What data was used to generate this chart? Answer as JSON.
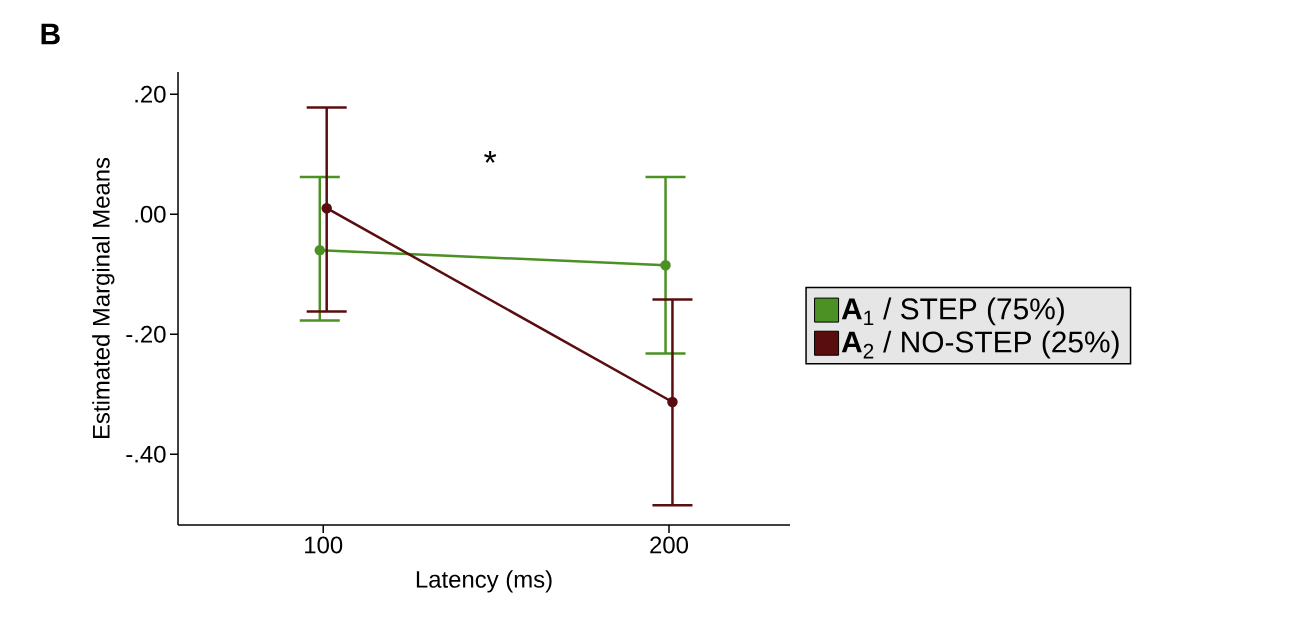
{
  "chart_data": {
    "type": "line",
    "title": "B",
    "xlabel": "Latency (ms)",
    "ylabel": "Estimated Marginal Means",
    "xlim": [
      58,
      235
    ],
    "xticks": [
      100,
      200
    ],
    "ylim": [
      -0.518,
      0.237
    ],
    "yticks": [
      {
        "value": 0.2,
        "label": ".20"
      },
      {
        "value": 0,
        "label": ".00"
      },
      {
        "value": -0.2,
        "label": "-.20"
      },
      {
        "value": -0.4,
        "label": "-.40"
      }
    ],
    "series": [
      {
        "name": "**A**$_{1}$ / STEP (75%)",
        "color": "#4b9124",
        "x": [
          99,
          199
        ],
        "values": [
          -0.06,
          -0.085
        ],
        "errors": [
          [
            -0.177,
            0.062
          ],
          [
            -0.232,
            0.062
          ]
        ]
      },
      {
        "name": "**A**$_{2}$ / NO-STEP (25%)",
        "color": "#5a0d0f",
        "x": [
          101,
          201
        ],
        "values": [
          0.01,
          -0.313
        ],
        "errors": [
          [
            -0.162,
            0.178
          ],
          [
            -0.485,
            -0.142
          ]
        ]
      }
    ],
    "annotations": [
      "*"
    ],
    "legend": "right",
    "marker": "circle",
    "line_style": "solid",
    "grid": false
  }
}
